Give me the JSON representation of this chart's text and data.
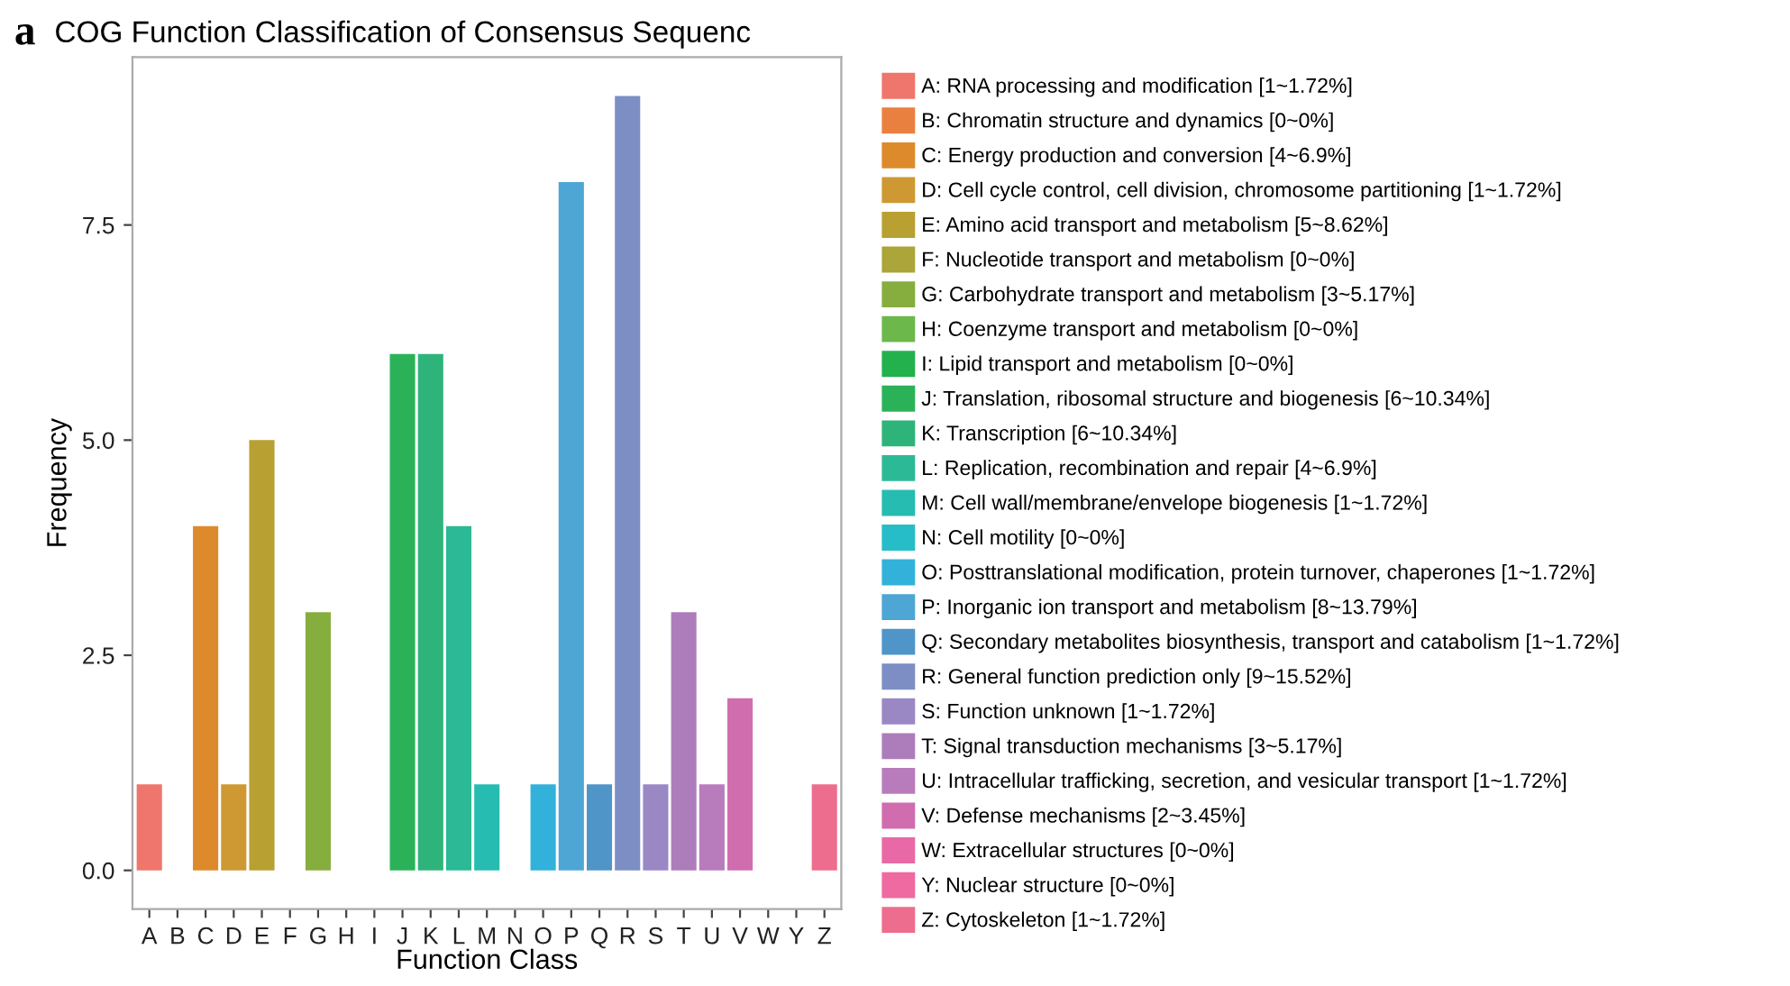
{
  "chart_data": {
    "type": "bar",
    "title": "COG Function Classification of Consensus Sequenc",
    "xlabel": "Function Class",
    "ylabel": "Frequency",
    "annotations": [
      "a"
    ],
    "categories": [
      "A",
      "B",
      "C",
      "D",
      "E",
      "F",
      "G",
      "H",
      "I",
      "J",
      "K",
      "L",
      "M",
      "N",
      "O",
      "P",
      "Q",
      "R",
      "S",
      "T",
      "U",
      "V",
      "W",
      "Y",
      "Z"
    ],
    "series": [
      {
        "name": "A: RNA processing and modification [1~1.72%]",
        "color": "#ee766d",
        "values": [
          1,
          null,
          null,
          null,
          null,
          null,
          null,
          null,
          null,
          null,
          null,
          null,
          null,
          null,
          null,
          null,
          null,
          null,
          null,
          null,
          null,
          null,
          null,
          null,
          null
        ]
      },
      {
        "name": "B: Chromatin structure and dynamics [0~0%]",
        "color": "#ea8040",
        "values": [
          null,
          0,
          null,
          null,
          null,
          null,
          null,
          null,
          null,
          null,
          null,
          null,
          null,
          null,
          null,
          null,
          null,
          null,
          null,
          null,
          null,
          null,
          null,
          null,
          null
        ]
      },
      {
        "name": "C: Energy production and conversion [4~6.9%]",
        "color": "#dd8a2c",
        "values": [
          null,
          null,
          4,
          null,
          null,
          null,
          null,
          null,
          null,
          null,
          null,
          null,
          null,
          null,
          null,
          null,
          null,
          null,
          null,
          null,
          null,
          null,
          null,
          null,
          null
        ]
      },
      {
        "name": "D: Cell cycle control, cell division, chromosome partitioning [1~1.72%]",
        "color": "#ce9933",
        "values": [
          null,
          null,
          null,
          1,
          null,
          null,
          null,
          null,
          null,
          null,
          null,
          null,
          null,
          null,
          null,
          null,
          null,
          null,
          null,
          null,
          null,
          null,
          null,
          null,
          null
        ]
      },
      {
        "name": "E: Amino acid transport and metabolism [5~8.62%]",
        "color": "#b8a033",
        "values": [
          null,
          null,
          null,
          null,
          5,
          null,
          null,
          null,
          null,
          null,
          null,
          null,
          null,
          null,
          null,
          null,
          null,
          null,
          null,
          null,
          null,
          null,
          null,
          null,
          null
        ]
      },
      {
        "name": "F: Nucleotide transport and metabolism [0~0%]",
        "color": "#aba53a",
        "values": [
          null,
          null,
          null,
          null,
          null,
          0,
          null,
          null,
          null,
          null,
          null,
          null,
          null,
          null,
          null,
          null,
          null,
          null,
          null,
          null,
          null,
          null,
          null,
          null,
          null
        ]
      },
      {
        "name": "G: Carbohydrate transport and metabolism [3~5.17%]",
        "color": "#86ae3e",
        "values": [
          null,
          null,
          null,
          null,
          null,
          null,
          3,
          null,
          null,
          null,
          null,
          null,
          null,
          null,
          null,
          null,
          null,
          null,
          null,
          null,
          null,
          null,
          null,
          null,
          null
        ]
      },
      {
        "name": "H: Coenzyme transport and metabolism [0~0%]",
        "color": "#6db84b",
        "values": [
          null,
          null,
          null,
          null,
          null,
          null,
          null,
          0,
          null,
          null,
          null,
          null,
          null,
          null,
          null,
          null,
          null,
          null,
          null,
          null,
          null,
          null,
          null,
          null,
          null
        ]
      },
      {
        "name": "I: Lipid transport and metabolism [0~0%]",
        "color": "#22b14c",
        "values": [
          null,
          null,
          null,
          null,
          null,
          null,
          null,
          null,
          0,
          null,
          null,
          null,
          null,
          null,
          null,
          null,
          null,
          null,
          null,
          null,
          null,
          null,
          null,
          null,
          null
        ]
      },
      {
        "name": "J: Translation, ribosomal structure and biogenesis [6~10.34%]",
        "color": "#2bb259",
        "values": [
          null,
          null,
          null,
          null,
          null,
          null,
          null,
          null,
          null,
          6,
          null,
          null,
          null,
          null,
          null,
          null,
          null,
          null,
          null,
          null,
          null,
          null,
          null,
          null,
          null
        ]
      },
      {
        "name": "K: Transcription [6~10.34%]",
        "color": "#2eb47a",
        "values": [
          null,
          null,
          null,
          null,
          null,
          null,
          null,
          null,
          null,
          null,
          6,
          null,
          null,
          null,
          null,
          null,
          null,
          null,
          null,
          null,
          null,
          null,
          null,
          null,
          null
        ]
      },
      {
        "name": "L: Replication, recombination and repair [4~6.9%]",
        "color": "#2cb995",
        "values": [
          null,
          null,
          null,
          null,
          null,
          null,
          null,
          null,
          null,
          null,
          null,
          4,
          null,
          null,
          null,
          null,
          null,
          null,
          null,
          null,
          null,
          null,
          null,
          null,
          null
        ]
      },
      {
        "name": "M: Cell wall/membrane/envelope biogenesis [1~1.72%]",
        "color": "#26bcb1",
        "values": [
          null,
          null,
          null,
          null,
          null,
          null,
          null,
          null,
          null,
          null,
          null,
          null,
          1,
          null,
          null,
          null,
          null,
          null,
          null,
          null,
          null,
          null,
          null,
          null,
          null
        ]
      },
      {
        "name": "N: Cell motility [0~0%]",
        "color": "#26bdc8",
        "values": [
          null,
          null,
          null,
          null,
          null,
          null,
          null,
          null,
          null,
          null,
          null,
          null,
          null,
          0,
          null,
          null,
          null,
          null,
          null,
          null,
          null,
          null,
          null,
          null,
          null
        ]
      },
      {
        "name": "O: Posttranslational modification, protein turnover, chaperones [1~1.72%]",
        "color": "#32b2da",
        "values": [
          null,
          null,
          null,
          null,
          null,
          null,
          null,
          null,
          null,
          null,
          null,
          null,
          null,
          null,
          1,
          null,
          null,
          null,
          null,
          null,
          null,
          null,
          null,
          null,
          null
        ]
      },
      {
        "name": "P: Inorganic ion transport and metabolism [8~13.79%]",
        "color": "#4ea6d5",
        "values": [
          null,
          null,
          null,
          null,
          null,
          null,
          null,
          null,
          null,
          null,
          null,
          null,
          null,
          null,
          null,
          8,
          null,
          null,
          null,
          null,
          null,
          null,
          null,
          null,
          null
        ]
      },
      {
        "name": "Q: Secondary metabolites biosynthesis, transport and catabolism [1~1.72%]",
        "color": "#4f95c8",
        "values": [
          null,
          null,
          null,
          null,
          null,
          null,
          null,
          null,
          null,
          null,
          null,
          null,
          null,
          null,
          null,
          null,
          1,
          null,
          null,
          null,
          null,
          null,
          null,
          null,
          null
        ]
      },
      {
        "name": "R: General function prediction only [9~15.52%]",
        "color": "#7d8ec5",
        "values": [
          null,
          null,
          null,
          null,
          null,
          null,
          null,
          null,
          null,
          null,
          null,
          null,
          null,
          null,
          null,
          null,
          null,
          9,
          null,
          null,
          null,
          null,
          null,
          null,
          null
        ]
      },
      {
        "name": "S: Function unknown [1~1.72%]",
        "color": "#9a88c5",
        "values": [
          null,
          null,
          null,
          null,
          null,
          null,
          null,
          null,
          null,
          null,
          null,
          null,
          null,
          null,
          null,
          null,
          null,
          null,
          1,
          null,
          null,
          null,
          null,
          null,
          null
        ]
      },
      {
        "name": "T: Signal transduction mechanisms [3~5.17%]",
        "color": "#ad7dbb",
        "values": [
          null,
          null,
          null,
          null,
          null,
          null,
          null,
          null,
          null,
          null,
          null,
          null,
          null,
          null,
          null,
          null,
          null,
          null,
          null,
          3,
          null,
          null,
          null,
          null,
          null
        ]
      },
      {
        "name": "U: Intracellular trafficking, secretion, and vesicular transport [1~1.72%]",
        "color": "#b87bbb",
        "values": [
          null,
          null,
          null,
          null,
          null,
          null,
          null,
          null,
          null,
          null,
          null,
          null,
          null,
          null,
          null,
          null,
          null,
          null,
          null,
          null,
          1,
          null,
          null,
          null,
          null
        ]
      },
      {
        "name": "V: Defense mechanisms [2~3.45%]",
        "color": "#d06dae",
        "values": [
          null,
          null,
          null,
          null,
          null,
          null,
          null,
          null,
          null,
          null,
          null,
          null,
          null,
          null,
          null,
          null,
          null,
          null,
          null,
          null,
          null,
          2,
          null,
          null,
          null
        ]
      },
      {
        "name": "W: Extracellular structures [0~0%]",
        "color": "#e869a6",
        "values": [
          null,
          null,
          null,
          null,
          null,
          null,
          null,
          null,
          null,
          null,
          null,
          null,
          null,
          null,
          null,
          null,
          null,
          null,
          null,
          null,
          null,
          null,
          0,
          null,
          null
        ]
      },
      {
        "name": "Y: Nuclear structure [0~0%]",
        "color": "#ee6aa0",
        "values": [
          null,
          null,
          null,
          null,
          null,
          null,
          null,
          null,
          null,
          null,
          null,
          null,
          null,
          null,
          null,
          null,
          null,
          null,
          null,
          null,
          null,
          null,
          null,
          0,
          null
        ]
      },
      {
        "name": "Z: Cytoskeleton [1~1.72%]",
        "color": "#ed6d8f",
        "values": [
          null,
          null,
          null,
          null,
          null,
          null,
          null,
          null,
          null,
          null,
          null,
          null,
          null,
          null,
          null,
          null,
          null,
          null,
          null,
          null,
          null,
          null,
          null,
          null,
          1
        ]
      }
    ],
    "ylim": [
      -0.45,
      9.45
    ],
    "yticks": [
      {
        "value": 0,
        "label": "0.0"
      },
      2.5,
      {
        "value": 5,
        "label": "5.0"
      },
      7.5
    ],
    "grid": false,
    "legend": "right"
  }
}
